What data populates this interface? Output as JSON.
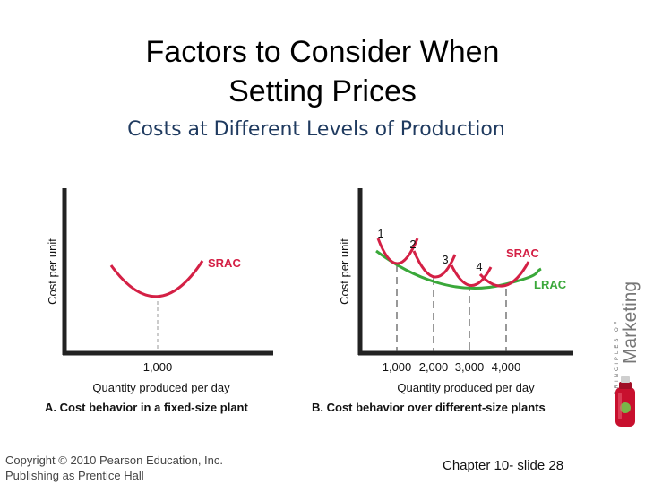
{
  "slide": {
    "title_line1": "Factors to Consider When",
    "title_line2": "Setting Prices",
    "subtitle": "Costs at Different Levels of Production"
  },
  "chart_data": [
    {
      "type": "line",
      "title": "A. Cost behavior in a fixed-size plant",
      "xlabel": "Quantity produced per day",
      "ylabel": "Cost per unit",
      "series": [
        {
          "name": "SRAC",
          "min_at": 1000
        }
      ],
      "tick_labels": [
        "1,000"
      ],
      "curve_label": "SRAC"
    },
    {
      "type": "line",
      "title": "B. Cost behavior over different-size plants",
      "xlabel": "Quantity produced per day",
      "ylabel": "Cost per unit",
      "plant_labels": [
        "1",
        "2",
        "3",
        "4"
      ],
      "series": [
        {
          "name": "SRAC",
          "min_at": [
            1000,
            2000,
            3000,
            4000
          ]
        },
        {
          "name": "LRAC"
        }
      ],
      "tick_labels": [
        "1,000",
        "2,000",
        "3,000",
        "4,000"
      ],
      "curve_labels": [
        "SRAC",
        "LRAC"
      ]
    }
  ],
  "footer": {
    "copyright_line1": "Copyright © 2010 Pearson Education, Inc.",
    "copyright_line2": "Publishing as Prentice Hall",
    "slide_number": "Chapter 10- slide 28"
  },
  "brand": {
    "small_text": "PRINCIPLES OF",
    "big_text": "Marketing"
  },
  "colors": {
    "srac": "#d42045",
    "lrac": "#3aa83a",
    "axis": "#222222",
    "subtitle": "#1f3a5f"
  }
}
